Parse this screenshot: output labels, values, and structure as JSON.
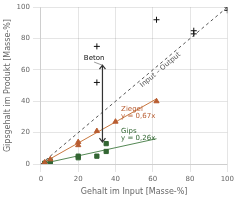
{
  "chart_data": {
    "type": "scatter",
    "xlabel": "Gehalt im Input [Masse-%]",
    "ylabel": "Gipsgehalt im Produkt [Masse-%]",
    "xlim": [
      0,
      100
    ],
    "ylim": [
      0,
      100
    ],
    "xticks": [
      0,
      20,
      40,
      60,
      80,
      100
    ],
    "yticks": [
      0,
      20,
      40,
      60,
      80,
      100
    ],
    "grid": true,
    "series": [
      {
        "name": "Input – Output",
        "type": "line",
        "line_style": "dashed",
        "color": "#555555",
        "x": [
          0,
          100
        ],
        "values": [
          0,
          100
        ]
      },
      {
        "type": "line",
        "line_style": "solid",
        "color": "#c87840",
        "x": [
          0,
          62
        ],
        "values": [
          0,
          41.54
        ]
      },
      {
        "type": "line",
        "line_style": "solid",
        "color": "#558855",
        "x": [
          0,
          62
        ],
        "values": [
          0,
          16.12
        ]
      },
      {
        "name": "Beton",
        "type": "scatter",
        "marker": "plus",
        "color": "#111111",
        "x": [
          30,
          30,
          62,
          82,
          82,
          100,
          100
        ],
        "values": [
          75,
          52,
          92,
          83,
          85,
          98,
          100
        ]
      },
      {
        "name": "Ziegel",
        "type": "scatter",
        "marker": "triangle",
        "color": "#b85c30",
        "x": [
          2,
          5,
          20,
          20,
          30,
          40,
          62
        ],
        "values": [
          1,
          3,
          12,
          14,
          21,
          27,
          40
        ]
      },
      {
        "name": "Gips",
        "type": "scatter",
        "marker": "square",
        "color": "#336633",
        "x": [
          2,
          5,
          5,
          20,
          20,
          30,
          35,
          35
        ],
        "values": [
          0.5,
          1,
          2,
          4,
          5,
          5,
          8,
          13
        ]
      }
    ],
    "annotations": [
      {
        "text": "y = 0,67x",
        "color": "#b85c30"
      },
      {
        "text": "y = 0,26x",
        "color": "#336633"
      }
    ]
  }
}
